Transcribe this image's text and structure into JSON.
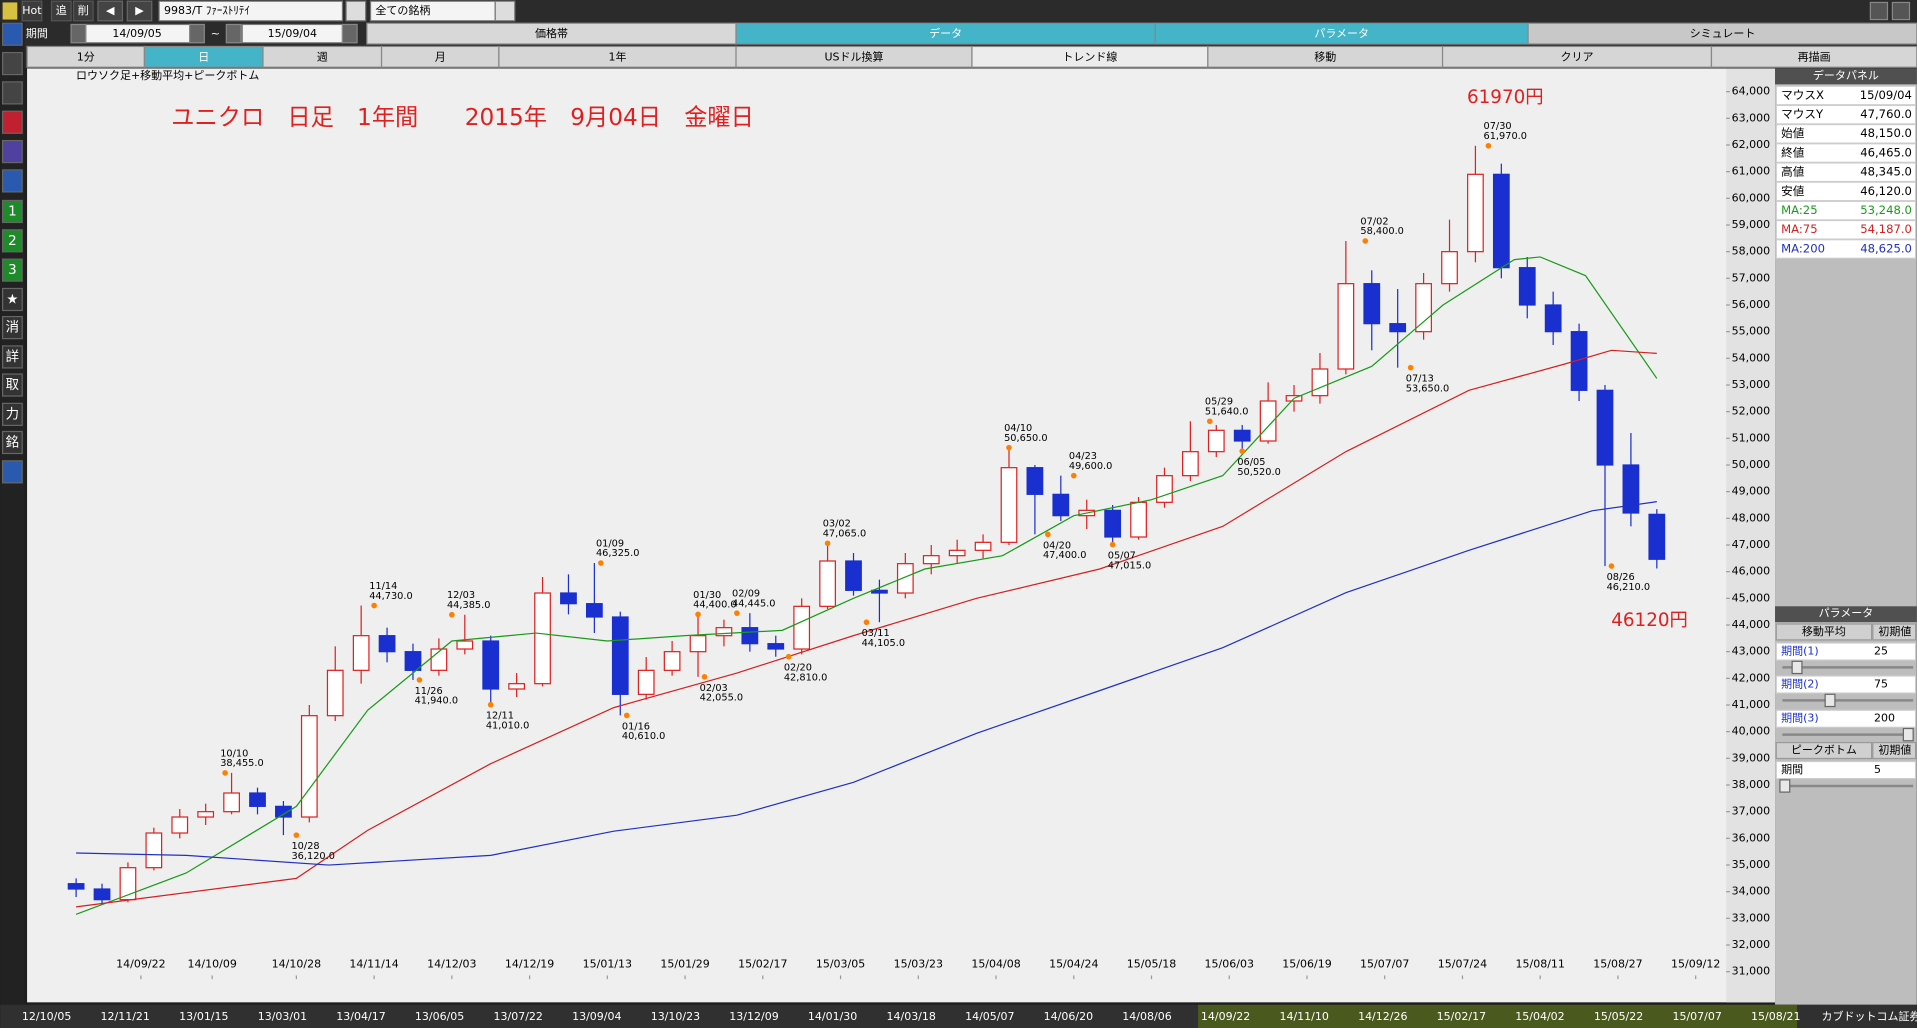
{
  "toolbar": {
    "items": [
      "Hot",
      "追",
      "削"
    ],
    "symbol": "9983/T ﾌｧｰｽﾄﾘﾃｲ",
    "market": "全ての銘柄",
    "period_label": "期間",
    "from": "14/09/05",
    "separator": "~",
    "to": "15/09/04"
  },
  "tabs": [
    "価格帯",
    "データ",
    "パラメータ",
    "シミュレート"
  ],
  "buttons": [
    "1分",
    "日",
    "週",
    "月",
    "1年",
    "USドル換算",
    "トレンド線",
    "移動",
    "クリア",
    "再描画"
  ],
  "sidebar": [
    "1",
    "2",
    "3",
    "★",
    "消",
    "詳",
    "取",
    "力",
    "銘"
  ],
  "chart_data": {
    "type": "candlestick",
    "subtitle": "ロウソク足+移動平均+ピークボトム",
    "title": "ユニクロ　日足　1年間　　2015年　9月04日　金曜日",
    "notes": [
      "61970円",
      "46120円"
    ],
    "up_color": "#e02020",
    "down_color": "#1a2fd0",
    "x": [
      0,
      4,
      8,
      12,
      16,
      20,
      24,
      28,
      32,
      36,
      40,
      44,
      48,
      52,
      56,
      60,
      64,
      68,
      72,
      76,
      80,
      84,
      88,
      92,
      96,
      100,
      104,
      108,
      112,
      116,
      120,
      124,
      128,
      132,
      136,
      140,
      144,
      148,
      152,
      156,
      160,
      164,
      168,
      172,
      176,
      180,
      184,
      188,
      192,
      196,
      200,
      204,
      208,
      212,
      216,
      220,
      224,
      228,
      232,
      236,
      240,
      244
    ],
    "open": [
      34300,
      34100,
      33700,
      34900,
      36200,
      36800,
      37000,
      37700,
      37200,
      36800,
      40600,
      42300,
      43600,
      43000,
      42300,
      43100,
      43400,
      41600,
      41800,
      45200,
      44800,
      44300,
      41400,
      42300,
      43000,
      43600,
      43900,
      43300,
      43100,
      44700,
      46400,
      45300,
      45200,
      46300,
      46600,
      46800,
      47100,
      49900,
      48900,
      48100,
      48300,
      47300,
      48600,
      49600,
      50500,
      51300,
      50900,
      52400,
      52600,
      53600,
      56800,
      55300,
      55000,
      56800,
      58000,
      60900,
      57400,
      56000,
      55000,
      52800,
      50000,
      48150
    ],
    "high": [
      34500,
      34300,
      35100,
      36400,
      37100,
      37300,
      38455,
      37900,
      37400,
      41000,
      43200,
      44730,
      43900,
      43300,
      43500,
      44385,
      43600,
      42200,
      45800,
      45900,
      46325,
      44500,
      42800,
      43400,
      44400,
      44200,
      44445,
      43600,
      45000,
      47065,
      46700,
      45700,
      46700,
      47000,
      47200,
      47400,
      50650,
      50000,
      49600,
      48700,
      48500,
      48800,
      49900,
      51640,
      51500,
      51500,
      53100,
      53000,
      54200,
      58400,
      57300,
      56600,
      57200,
      59200,
      61970,
      61300,
      57800,
      56500,
      55300,
      53000,
      51200,
      48345
    ],
    "low": [
      33800,
      33500,
      33600,
      34800,
      36000,
      36500,
      36900,
      36900,
      36120,
      36600,
      40400,
      41800,
      42600,
      41940,
      42100,
      42900,
      41010,
      41300,
      41700,
      44400,
      43700,
      40610,
      41200,
      42100,
      42055,
      43200,
      43000,
      42810,
      42900,
      44600,
      45100,
      44105,
      45000,
      45900,
      46300,
      46500,
      47000,
      47400,
      47900,
      47600,
      47015,
      47200,
      48400,
      49400,
      50300,
      50520,
      50800,
      52000,
      52300,
      53400,
      54300,
      53650,
      54700,
      56500,
      57600,
      57000,
      55500,
      54500,
      52400,
      46210,
      47700,
      46120
    ],
    "close": [
      34100,
      33700,
      34900,
      36200,
      36800,
      37000,
      37700,
      37200,
      36800,
      40600,
      42300,
      43600,
      43000,
      42300,
      43100,
      43400,
      41600,
      41800,
      45200,
      44800,
      44300,
      41400,
      42300,
      43000,
      43600,
      43900,
      43300,
      43100,
      44700,
      46400,
      45300,
      45200,
      46300,
      46600,
      46800,
      47100,
      49900,
      48900,
      48100,
      48300,
      47300,
      48600,
      49600,
      50500,
      51300,
      50900,
      52400,
      52600,
      53600,
      56800,
      55300,
      55000,
      56800,
      58000,
      60900,
      57400,
      56000,
      55000,
      52800,
      50000,
      48200,
      46465
    ],
    "lines": [
      {
        "color": "#1a9a1a",
        "x": [
          0,
          17,
          34,
          45,
          58,
          71,
          82,
          94,
          109,
          120,
          131,
          143,
          154,
          166,
          177,
          188,
          200,
          211,
          222,
          226,
          233,
          244
        ],
        "values": [
          33150,
          34700,
          37200,
          40800,
          43400,
          43700,
          43400,
          43600,
          43800,
          45000,
          46100,
          46600,
          48100,
          48700,
          49600,
          52500,
          53700,
          56000,
          57700,
          57800,
          57100,
          53248
        ]
      },
      {
        "color": "#d42020",
        "x": [
          0,
          34,
          45,
          64,
          83,
          102,
          120,
          139,
          158,
          177,
          196,
          215,
          230,
          237,
          244
        ],
        "values": [
          33430,
          34500,
          36300,
          38800,
          40900,
          42200,
          43600,
          45000,
          46100,
          47700,
          50500,
          52800,
          53800,
          54300,
          54187
        ]
      },
      {
        "color": "#2030c0",
        "x": [
          0,
          17,
          39,
          64,
          83,
          102,
          120,
          139,
          158,
          177,
          196,
          215,
          234,
          244
        ],
        "values": [
          35450,
          35360,
          35000,
          35360,
          36270,
          36870,
          38100,
          39940,
          41540,
          43150,
          45210,
          46800,
          48280,
          48625
        ]
      }
    ],
    "peak_color": "#ff7f00",
    "peaks": [
      {
        "date": "10/10",
        "value": 38455,
        "label": "38,455.0",
        "x": 23
      },
      {
        "date": "10/28",
        "value": 36120,
        "label": "36,120.0",
        "x": 34
      },
      {
        "date": "11/14",
        "value": 44730,
        "label": "44,730.0",
        "x": 46
      },
      {
        "date": "11/26",
        "value": 41940,
        "label": "41,940.0",
        "x": 53
      },
      {
        "date": "12/03",
        "value": 44385,
        "label": "44,385.0",
        "x": 58
      },
      {
        "date": "12/11",
        "value": 41010,
        "label": "41,010.0",
        "x": 64
      },
      {
        "date": "01/09",
        "value": 46325,
        "label": "46,325.0",
        "x": 81
      },
      {
        "date": "01/16",
        "value": 40610,
        "label": "40,610.0",
        "x": 85
      },
      {
        "date": "01/30",
        "value": 44400,
        "label": "44,400.0",
        "x": 96
      },
      {
        "date": "02/03",
        "value": 42055,
        "label": "42,055.0",
        "x": 97
      },
      {
        "date": "02/09",
        "value": 44445,
        "label": "44,445.0",
        "x": 102
      },
      {
        "date": "02/20",
        "value": 42810,
        "label": "42,810.0",
        "x": 110
      },
      {
        "date": "03/02",
        "value": 47065,
        "label": "47,065.0",
        "x": 116
      },
      {
        "date": "03/11",
        "value": 44105,
        "label": "44,105.0",
        "x": 122
      },
      {
        "date": "04/10",
        "value": 50650,
        "label": "50,650.0",
        "x": 144
      },
      {
        "date": "04/20",
        "value": 47400,
        "label": "47,400.0",
        "x": 150
      },
      {
        "date": "04/23",
        "value": 49600,
        "label": "49,600.0",
        "x": 154
      },
      {
        "date": "05/07",
        "value": 47015,
        "label": "47,015.0",
        "x": 160
      },
      {
        "date": "05/29",
        "value": 51640,
        "label": "51,640.0",
        "x": 175
      },
      {
        "date": "06/05",
        "value": 50520,
        "label": "50,520.0",
        "x": 180
      },
      {
        "date": "07/02",
        "value": 58400,
        "label": "58,400.0",
        "x": 199
      },
      {
        "date": "07/13",
        "value": 53650,
        "label": "53,650.0",
        "x": 206
      },
      {
        "date": "07/30",
        "value": 61970,
        "label": "61,970.0",
        "x": 218
      },
      {
        "date": "08/26",
        "value": 46210,
        "label": "46,210.0",
        "x": 237
      }
    ],
    "xlim": [
      -0.4,
      254.7
    ],
    "xticks": [
      {
        "value": 10,
        "label": "14/09/22"
      },
      {
        "value": 21,
        "label": "14/10/09"
      },
      {
        "value": 34,
        "label": "14/10/28"
      },
      {
        "value": 46,
        "label": "14/11/14"
      },
      {
        "value": 58,
        "label": "14/12/03"
      },
      {
        "value": 70,
        "label": "14/12/19"
      },
      {
        "value": 82,
        "label": "15/01/13"
      },
      {
        "value": 94,
        "label": "15/01/29"
      },
      {
        "value": 106,
        "label": "15/02/17"
      },
      {
        "value": 118,
        "label": "15/03/05"
      },
      {
        "value": 130,
        "label": "15/03/23"
      },
      {
        "value": 142,
        "label": "15/04/08"
      },
      {
        "value": 154,
        "label": "15/04/24"
      },
      {
        "value": 166,
        "label": "15/05/18"
      },
      {
        "value": 178,
        "label": "15/06/03"
      },
      {
        "value": 190,
        "label": "15/06/19"
      },
      {
        "value": 202,
        "label": "15/07/07"
      },
      {
        "value": 214,
        "label": "15/07/24"
      },
      {
        "value": 226,
        "label": "15/08/11"
      },
      {
        "value": 238,
        "label": "15/08/27"
      },
      {
        "value": 250,
        "label": "15/09/12"
      }
    ],
    "ylim": [
      30080,
      64870
    ],
    "yticks": [
      {
        "value": 31000,
        "label": "31,000"
      },
      {
        "value": 32000,
        "label": "32,000"
      },
      {
        "value": 33000,
        "label": "33,000"
      },
      {
        "value": 34000,
        "label": "34,000"
      },
      {
        "value": 35000,
        "label": "35,000"
      },
      {
        "value": 36000,
        "label": "36,000"
      },
      {
        "value": 37000,
        "label": "37,000"
      },
      {
        "value": 38000,
        "label": "38,000"
      },
      {
        "value": 39000,
        "label": "39,000"
      },
      {
        "value": 40000,
        "label": "40,000"
      },
      {
        "value": 41000,
        "label": "41,000"
      },
      {
        "value": 42000,
        "label": "42,000"
      },
      {
        "value": 43000,
        "label": "43,000"
      },
      {
        "value": 44000,
        "label": "44,000"
      },
      {
        "value": 45000,
        "label": "45,000"
      },
      {
        "value": 46000,
        "label": "46,000"
      },
      {
        "value": 47000,
        "label": "47,000"
      },
      {
        "value": 48000,
        "label": "48,000"
      },
      {
        "value": 49000,
        "label": "49,000"
      },
      {
        "value": 50000,
        "label": "50,000"
      },
      {
        "value": 51000,
        "label": "51,000"
      },
      {
        "value": 52000,
        "label": "52,000"
      },
      {
        "value": 53000,
        "label": "53,000"
      },
      {
        "value": 54000,
        "label": "54,000"
      },
      {
        "value": 55000,
        "label": "55,000"
      },
      {
        "value": 56000,
        "label": "56,000"
      },
      {
        "value": 57000,
        "label": "57,000"
      },
      {
        "value": 58000,
        "label": "58,000"
      },
      {
        "value": 59000,
        "label": "59,000"
      },
      {
        "value": 60000,
        "label": "60,000"
      },
      {
        "value": 61000,
        "label": "61,000"
      },
      {
        "value": 62000,
        "label": "62,000"
      },
      {
        "value": 63000,
        "label": "63,000"
      },
      {
        "value": 64000,
        "label": "64,000"
      }
    ],
    "grid": false
  },
  "data_panel": {
    "title": "データパネル",
    "rows": [
      [
        "マウスX",
        "15/09/04"
      ],
      [
        "マウスY",
        "47,760.0"
      ],
      [
        "始値",
        "48,150.0"
      ],
      [
        "終値",
        "46,465.0"
      ],
      [
        "高値",
        "48,345.0"
      ],
      [
        "安値",
        "46,120.0"
      ],
      [
        "MA:25",
        "53,248.0"
      ],
      [
        "MA:75",
        "54,187.0"
      ],
      [
        "MA:200",
        "48,625.0"
      ]
    ]
  },
  "parameter_panel": {
    "title": "パラメータ",
    "moving_average": {
      "header": [
        "移動平均",
        "初期値"
      ],
      "rows": [
        [
          "期間(1)",
          "25"
        ],
        [
          "期間(2)",
          "75"
        ],
        [
          "期間(3)",
          "200"
        ]
      ]
    },
    "peak_bottom": {
      "header": [
        "ピークボトム",
        "初期値"
      ],
      "rows": [
        [
          "期間",
          "5"
        ]
      ]
    }
  },
  "scrollbar_dates": [
    "12/10/05",
    "12/11/21",
    "13/01/15",
    "13/03/01",
    "13/04/17",
    "13/06/05",
    "13/07/22",
    "13/09/04",
    "13/10/23",
    "13/12/09",
    "14/01/30",
    "14/03/18",
    "14/05/07",
    "14/06/20",
    "14/08/06",
    "14/09/22",
    "14/11/10",
    "14/12/26",
    "15/02/17",
    "15/04/02",
    "15/05/22",
    "15/07/07",
    "15/08/21",
    "カブドットコム証券"
  ]
}
